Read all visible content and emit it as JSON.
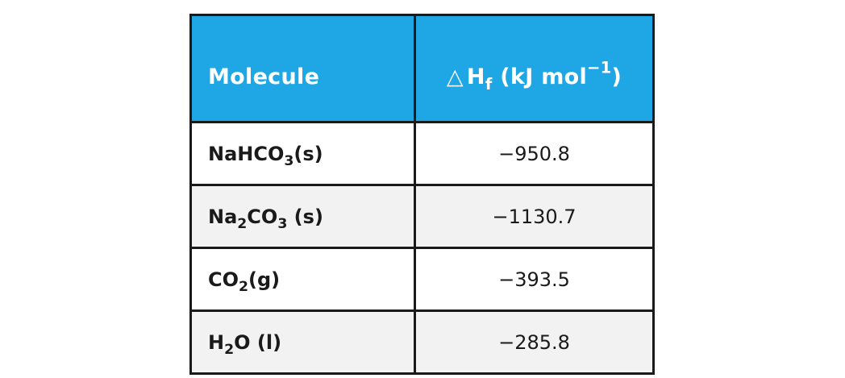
{
  "table": {
    "header": {
      "molecule": "Molecule",
      "delta_symbol": "△",
      "h": "H",
      "h_sub": "f",
      "units_open": "(kJ mol",
      "units_sup": "−1",
      "units_close": ")"
    },
    "rows": [
      {
        "formula": [
          {
            "t": "NaHCO"
          },
          {
            "sub": "3"
          },
          {
            "t": "(s)"
          }
        ],
        "value": "−950.8"
      },
      {
        "formula": [
          {
            "t": "Na"
          },
          {
            "sub": "2"
          },
          {
            "t": "CO"
          },
          {
            "sub": "3"
          },
          {
            "t": " (s)"
          }
        ],
        "value": "−1130.7"
      },
      {
        "formula": [
          {
            "t": "CO"
          },
          {
            "sub": "2"
          },
          {
            "t": "(g)"
          }
        ],
        "value": "−393.5"
      },
      {
        "formula": [
          {
            "t": "H"
          },
          {
            "sub": "2"
          },
          {
            "t": "O (l)"
          }
        ],
        "value": "−285.8"
      }
    ]
  },
  "colors": {
    "header_bg": "#1ea7e4",
    "border": "#1a1a1a",
    "alt_row": "#f2f2f2"
  }
}
